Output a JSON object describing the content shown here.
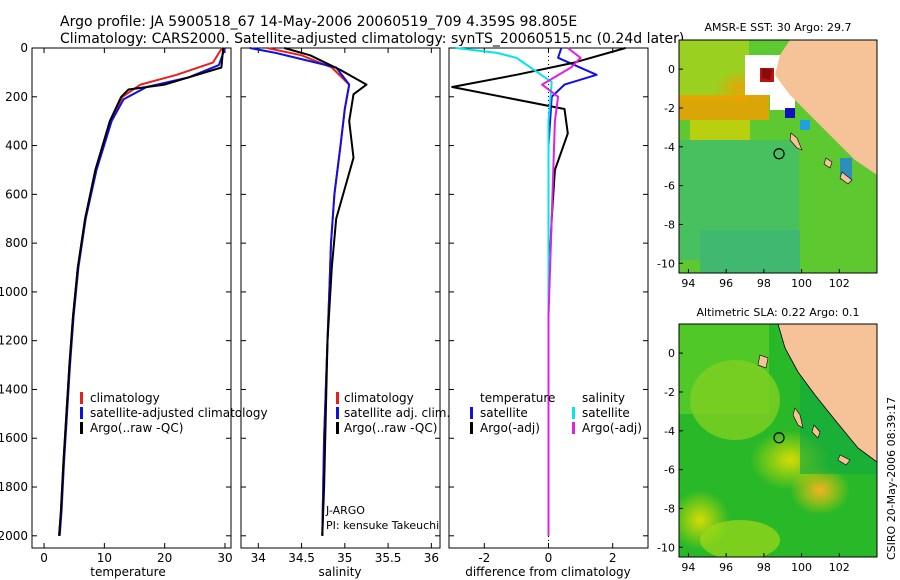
{
  "header": {
    "line1": "Argo profile: JA 5900518_67 14-May-2006 20060519_709 4.359S 98.805E",
    "line2": "Climatology: CARS2000. Satellite-adjusted climatology: synTS_20060515.nc (0.24d later)"
  },
  "colors": {
    "climatology": "#e8201b",
    "satellite": "#1010e0",
    "argo": "#000000",
    "sat_salinity": "#00e5ee",
    "argo_adj": "#e020e0",
    "land": "#f6c398"
  },
  "chart_data": [
    {
      "type": "line",
      "xlabel": "temperature",
      "ylabel": "",
      "xlim": [
        -2,
        31
      ],
      "ylim": [
        2050,
        0
      ],
      "xticks": [
        "0",
        "10",
        "20",
        "30"
      ],
      "yticks": [
        "0",
        "200",
        "400",
        "600",
        "800",
        "1000",
        "1200",
        "1400",
        "1600",
        "1800",
        "2000"
      ],
      "legend": [
        "climatology",
        "satellite-adjusted climatology",
        "Argo(..raw -QC)"
      ],
      "series": [
        {
          "name": "climatology",
          "x": [
            29.5,
            28.0,
            22.0,
            16.0,
            13.0,
            11.0,
            8.6,
            6.8,
            5.6,
            4.8,
            4.2,
            3.7,
            3.2,
            2.8,
            2.5
          ],
          "y": [
            0,
            60,
            110,
            150,
            200,
            300,
            500,
            700,
            900,
            1100,
            1300,
            1500,
            1700,
            1900,
            2000
          ]
        },
        {
          "name": "satellite-adjusted climatology",
          "x": [
            30.0,
            29.0,
            24.0,
            17.0,
            13.2,
            11.2,
            8.7,
            6.9,
            5.7,
            4.9,
            4.3,
            3.8,
            3.3,
            2.9,
            2.6
          ],
          "y": [
            0,
            70,
            120,
            160,
            210,
            300,
            500,
            700,
            900,
            1100,
            1300,
            1500,
            1700,
            1900,
            2000
          ]
        },
        {
          "name": "Argo(..raw -QC)",
          "x": [
            29.7,
            29.4,
            20.0,
            14.0,
            12.8,
            10.9,
            8.5,
            6.8,
            5.6,
            4.8,
            4.2,
            3.7,
            3.2,
            2.8,
            2.5
          ],
          "y": [
            0,
            80,
            150,
            170,
            200,
            300,
            500,
            700,
            900,
            1100,
            1300,
            1500,
            1700,
            1900,
            2000
          ]
        }
      ]
    },
    {
      "type": "line",
      "xlabel": "salinity",
      "ylabel": "",
      "xlim": [
        33.8,
        36.1
      ],
      "ylim": [
        2050,
        0
      ],
      "xticks": [
        "34",
        "34.5",
        "35",
        "35.5",
        "36"
      ],
      "legend": [
        "climatology",
        "satellite adj. clim.",
        "Argo(..raw -QC)"
      ],
      "annotations": [
        "J-ARGO",
        "PI: kensuke Takeuchi"
      ],
      "series": [
        {
          "name": "climatology",
          "x": [
            34.1,
            34.5,
            34.85,
            35.05,
            35.0,
            34.95,
            34.88,
            34.84,
            34.82,
            34.8,
            34.78,
            34.76,
            34.75,
            34.74
          ],
          "y": [
            0,
            30,
            80,
            150,
            250,
            400,
            600,
            800,
            1000,
            1200,
            1400,
            1600,
            1800,
            2000
          ]
        },
        {
          "name": "satellite adj. clim.",
          "x": [
            33.9,
            34.2,
            34.9,
            35.05,
            35.0,
            34.95,
            34.88,
            34.84,
            34.82,
            34.8,
            34.78,
            34.76,
            34.75,
            34.74
          ],
          "y": [
            0,
            20,
            80,
            150,
            250,
            400,
            600,
            800,
            1000,
            1200,
            1400,
            1600,
            1800,
            2000
          ]
        },
        {
          "name": "Argo(..raw -QC)",
          "x": [
            34.3,
            34.6,
            34.95,
            35.25,
            35.1,
            35.05,
            35.1,
            35.02,
            34.9,
            34.85,
            34.8,
            34.78,
            34.76,
            34.74
          ],
          "y": [
            0,
            30,
            90,
            150,
            190,
            300,
            450,
            550,
            700,
            900,
            1200,
            1500,
            1800,
            2000
          ]
        }
      ]
    },
    {
      "type": "line",
      "xlabel": "difference from climatology",
      "ylabel": "",
      "xlim": [
        -3.1,
        3.1
      ],
      "ylim": [
        2050,
        0
      ],
      "xticks": [
        "-2",
        "0",
        "2"
      ],
      "legend": [
        "temperature",
        "satellite",
        "Argo(-adj)",
        "salinity",
        "satellite",
        "Argo(-adj)"
      ],
      "series": [
        {
          "name": "satellite",
          "x": [
            0.4,
            0.3,
            1.5,
            0.5,
            0.1,
            0.0,
            0.0,
            0.0,
            0.0
          ],
          "y": [
            0,
            40,
            110,
            150,
            200,
            400,
            800,
            1400,
            2000
          ]
        },
        {
          "name": "Argo(-adj)",
          "x": [
            2.4,
            0.8,
            -1.0,
            -3.0,
            0.5,
            0.6,
            0.2,
            0.1,
            0.0,
            0.0,
            0.0
          ],
          "y": [
            0,
            60,
            110,
            160,
            250,
            350,
            500,
            700,
            1000,
            1400,
            2000
          ]
        },
        {
          "name": "satellite",
          "x": [
            -2.9,
            -1.6,
            -1.0,
            0.1,
            0.0,
            0.0,
            0.0,
            0.0
          ],
          "y": [
            0,
            20,
            40,
            140,
            300,
            800,
            1400,
            2000
          ]
        },
        {
          "name": "Argo(-adj)",
          "x": [
            0.6,
            1.0,
            0.7,
            -0.2,
            0.3,
            0.2,
            0.1,
            0.0,
            0.0
          ],
          "y": [
            0,
            40,
            80,
            150,
            200,
            300,
            700,
            1100,
            2000
          ]
        }
      ]
    },
    {
      "type": "heatmap",
      "title": "AMSR-E SST: 30 Argo: 29.7",
      "xlim": [
        93.5,
        104
      ],
      "ylim": [
        -10.5,
        1.5
      ],
      "xticks": [
        "94",
        "96",
        "98",
        "100",
        "102"
      ],
      "yticks": [
        "0",
        "-2",
        "-4",
        "-6",
        "-8",
        "-10"
      ],
      "argo_position": {
        "lon": 98.805,
        "lat": -4.359
      }
    },
    {
      "type": "heatmap",
      "title": "Altimetric SLA: 0.22 Argo: 0.1",
      "xlim": [
        93.5,
        104
      ],
      "ylim": [
        -10.5,
        1.5
      ],
      "xticks": [
        "94",
        "96",
        "98",
        "100",
        "102"
      ],
      "yticks": [
        "0",
        "-2",
        "-4",
        "-6",
        "-8",
        "-10"
      ],
      "argo_position": {
        "lon": 98.805,
        "lat": -4.359
      }
    }
  ],
  "footer": {
    "credit": "CSIRO 20-May-2006 08:39:17"
  }
}
